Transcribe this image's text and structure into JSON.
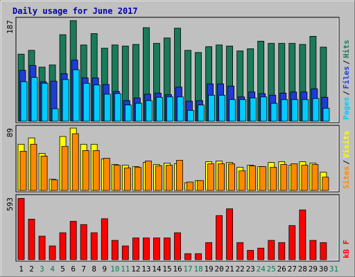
{
  "chart_data": {
    "type": "bar",
    "title": "Daily usage for June 2017",
    "days": [
      "1",
      "2",
      "3",
      "4",
      "5",
      "6",
      "7",
      "8",
      "9",
      "10",
      "11",
      "12",
      "13",
      "14",
      "15",
      "16",
      "17",
      "18",
      "19",
      "20",
      "21",
      "22",
      "23",
      "24",
      "25",
      "26",
      "27",
      "28",
      "29",
      "30",
      "31"
    ],
    "weekend_days": [
      "3",
      "4",
      "10",
      "11",
      "17",
      "18",
      "24",
      "25",
      "31"
    ],
    "panels": [
      {
        "name": "hits-files-pages",
        "ymax_label": "187",
        "legend": [
          "Pages",
          "Files",
          "Hits"
        ],
        "series": [
          {
            "name": "Hits",
            "color": "#1a7a5a",
            "values": [
              124,
              131,
              100,
              104,
              160,
              186,
              141,
              162,
              135,
              141,
              139,
              142,
              173,
              144,
              154,
              172,
              131,
              127,
              138,
              141,
              139,
              130,
              134,
              148,
              144,
              144,
              144,
              142,
              157,
              137,
              0
            ]
          },
          {
            "name": "Files",
            "color": "#1e3cd6",
            "values": [
              94,
              103,
              73,
              74,
              88,
              113,
              80,
              80,
              68,
              55,
              38,
              43,
              50,
              52,
              49,
              63,
              37,
              38,
              69,
              69,
              65,
              45,
              54,
              51,
              48,
              52,
              54,
              54,
              60,
              44,
              0
            ]
          },
          {
            "name": "Pages",
            "color": "#00ccff",
            "values": [
              73,
              81,
              70,
              23,
              77,
              95,
              70,
              67,
              50,
              51,
              30,
              33,
              38,
              44,
              45,
              45,
              20,
              30,
              48,
              48,
              40,
              40,
              43,
              45,
              33,
              40,
              40,
              40,
              42,
              24,
              0
            ]
          }
        ]
      },
      {
        "name": "visits-sites",
        "ymax_label": "89",
        "legend": [
          "Sites",
          "Visits"
        ],
        "series": [
          {
            "name": "Visits",
            "color": "#ffff00",
            "values": [
              66,
              75,
              53,
              16,
              77,
              89,
              66,
              66,
              45,
              37,
              36,
              34,
              40,
              37,
              39,
              38,
              11,
              14,
              41,
              42,
              40,
              33,
              36,
              34,
              40,
              41,
              36,
              41,
              39,
              26,
              0
            ]
          },
          {
            "name": "Sites",
            "color": "#ff8800",
            "values": [
              56,
              66,
              49,
              15,
              63,
              81,
              57,
              57,
              46,
              36,
              32,
              33,
              42,
              35,
              36,
              43,
              12,
              14,
              38,
              38,
              38,
              28,
              35,
              34,
              33,
              37,
              38,
              36,
              37,
              19,
              0
            ]
          }
        ]
      },
      {
        "name": "kbytes",
        "ymax_label": "593",
        "legend": [
          "kB F"
        ],
        "series": [
          {
            "name": "kB F",
            "color": "#ff0000",
            "values": [
              583,
              386,
              224,
              131,
              256,
              365,
              334,
              256,
              390,
              184,
              131,
              207,
              207,
              207,
              207,
              256,
              57,
              57,
              163,
              420,
              484,
              163,
              89,
              110,
              184,
              163,
              325,
              474,
              184,
              163,
              0
            ]
          }
        ]
      }
    ]
  }
}
